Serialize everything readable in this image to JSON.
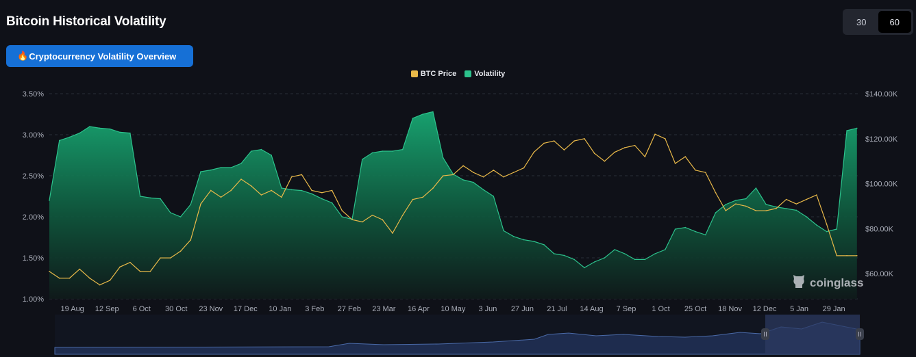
{
  "header": {
    "title": "Bitcoin Historical Volatility",
    "overview_button": "Cryptocurrency Volatility Overview",
    "overview_icon": "fire-icon"
  },
  "period_toggle": {
    "options": [
      "30",
      "60"
    ],
    "selected": "60"
  },
  "watermark": "coinglass",
  "colors": {
    "price": "#e9b949",
    "volatility": "#2cc28c",
    "background": "#0f1118"
  },
  "chart_data": {
    "type": "line",
    "legend_position": "top-center",
    "grid": true,
    "x_tick_labels": [
      "19 Aug",
      "12 Sep",
      "6 Oct",
      "30 Oct",
      "23 Nov",
      "17 Dec",
      "10 Jan",
      "3 Feb",
      "27 Feb",
      "23 Mar",
      "16 Apr",
      "10 May",
      "3 Jun",
      "27 Jun",
      "21 Jul",
      "14 Aug",
      "7 Sep",
      "1 Oct",
      "25 Oct",
      "18 Nov",
      "12 Dec",
      "5 Jan",
      "29 Jan"
    ],
    "x_tick_dates": [
      "2024-08-19",
      "2024-09-12",
      "2024-10-06",
      "2024-10-30",
      "2024-11-23",
      "2024-12-17",
      "2025-01-10",
      "2025-02-03",
      "2025-02-27",
      "2025-03-23",
      "2025-04-16",
      "2025-05-10",
      "2025-06-03",
      "2025-06-27",
      "2025-07-21",
      "2025-08-14",
      "2025-09-07",
      "2025-10-01",
      "2025-10-25",
      "2025-11-18",
      "2025-12-12",
      "2026-01-05",
      "2026-01-29"
    ],
    "xlim": [
      "2024-08-03",
      "2026-02-16"
    ],
    "left_axis": {
      "ticks": [
        "3.50%",
        "3.00%",
        "2.50%",
        "2.00%",
        "1.50%",
        "1.00%"
      ],
      "ylim": [
        1.0,
        3.5
      ]
    },
    "right_axis": {
      "ticks": [
        "$140.00K",
        "$120.00K",
        "$100.00K",
        "$80.00K",
        "$60.00K"
      ],
      "ylim": [
        48.8,
        140
      ]
    },
    "x": [
      "2024-08-03",
      "2024-08-10",
      "2024-08-17",
      "2024-08-24",
      "2024-08-31",
      "2024-09-07",
      "2024-09-14",
      "2024-09-21",
      "2024-09-28",
      "2024-10-05",
      "2024-10-12",
      "2024-10-19",
      "2024-10-26",
      "2024-11-02",
      "2024-11-09",
      "2024-11-16",
      "2024-11-23",
      "2024-11-30",
      "2024-12-07",
      "2024-12-14",
      "2024-12-21",
      "2024-12-28",
      "2025-01-04",
      "2025-01-11",
      "2025-01-18",
      "2025-01-25",
      "2025-02-01",
      "2025-02-08",
      "2025-02-15",
      "2025-02-22",
      "2025-03-01",
      "2025-03-08",
      "2025-03-15",
      "2025-03-22",
      "2025-03-29",
      "2025-04-05",
      "2025-04-12",
      "2025-04-19",
      "2025-04-26",
      "2025-05-03",
      "2025-05-10",
      "2025-05-17",
      "2025-05-24",
      "2025-05-31",
      "2025-06-07",
      "2025-06-14",
      "2025-06-21",
      "2025-06-28",
      "2025-07-05",
      "2025-07-12",
      "2025-07-19",
      "2025-07-26",
      "2025-08-02",
      "2025-08-09",
      "2025-08-16",
      "2025-08-23",
      "2025-08-30",
      "2025-09-06",
      "2025-09-13",
      "2025-09-20",
      "2025-09-27",
      "2025-10-04",
      "2025-10-11",
      "2025-10-18",
      "2025-10-25",
      "2025-11-01",
      "2025-11-08",
      "2025-11-15",
      "2025-11-22",
      "2025-11-29",
      "2025-12-06",
      "2025-12-13",
      "2025-12-20",
      "2025-12-27",
      "2026-01-03",
      "2026-01-10",
      "2026-01-17",
      "2026-01-24",
      "2026-01-31",
      "2026-02-07",
      "2026-02-14"
    ],
    "series": [
      {
        "name": "BTC Price",
        "axis": "right",
        "unit": "K USD",
        "values": [
          61,
          58,
          58,
          62,
          58,
          55,
          57,
          63,
          65,
          61,
          61,
          67,
          67,
          70,
          75,
          91,
          97,
          94,
          97,
          102,
          99,
          95,
          97,
          94,
          103,
          104,
          97,
          96,
          97,
          88,
          84,
          83,
          86,
          84,
          78,
          86,
          93,
          94,
          98,
          103.5,
          104,
          108,
          105,
          103,
          106,
          103,
          105,
          107,
          114,
          118,
          119,
          115,
          119,
          120,
          113.5,
          110,
          114,
          116,
          117,
          112,
          122,
          120,
          109,
          112,
          106,
          105,
          96,
          88,
          91,
          90,
          88,
          88,
          89,
          93,
          91,
          93,
          95,
          82,
          68,
          68,
          68
        ]
      },
      {
        "name": "Volatility",
        "axis": "left",
        "unit": "%",
        "values": [
          2.2,
          2.93,
          2.97,
          3.02,
          3.1,
          3.08,
          3.07,
          3.03,
          3.02,
          2.25,
          2.23,
          2.22,
          2.05,
          2.0,
          2.15,
          2.55,
          2.57,
          2.6,
          2.6,
          2.65,
          2.8,
          2.82,
          2.75,
          2.35,
          2.33,
          2.32,
          2.28,
          2.22,
          2.17,
          2.0,
          1.97,
          2.7,
          2.78,
          2.8,
          2.8,
          2.82,
          3.2,
          3.25,
          3.28,
          2.72,
          2.52,
          2.45,
          2.42,
          2.33,
          2.25,
          1.83,
          1.76,
          1.72,
          1.7,
          1.66,
          1.55,
          1.53,
          1.48,
          1.38,
          1.45,
          1.5,
          1.6,
          1.55,
          1.48,
          1.48,
          1.55,
          1.6,
          1.85,
          1.87,
          1.82,
          1.78,
          2.05,
          2.15,
          2.2,
          2.22,
          2.35,
          2.15,
          2.12,
          2.1,
          2.08,
          2.0,
          1.9,
          1.82,
          1.85,
          3.05,
          3.08
        ]
      }
    ]
  }
}
